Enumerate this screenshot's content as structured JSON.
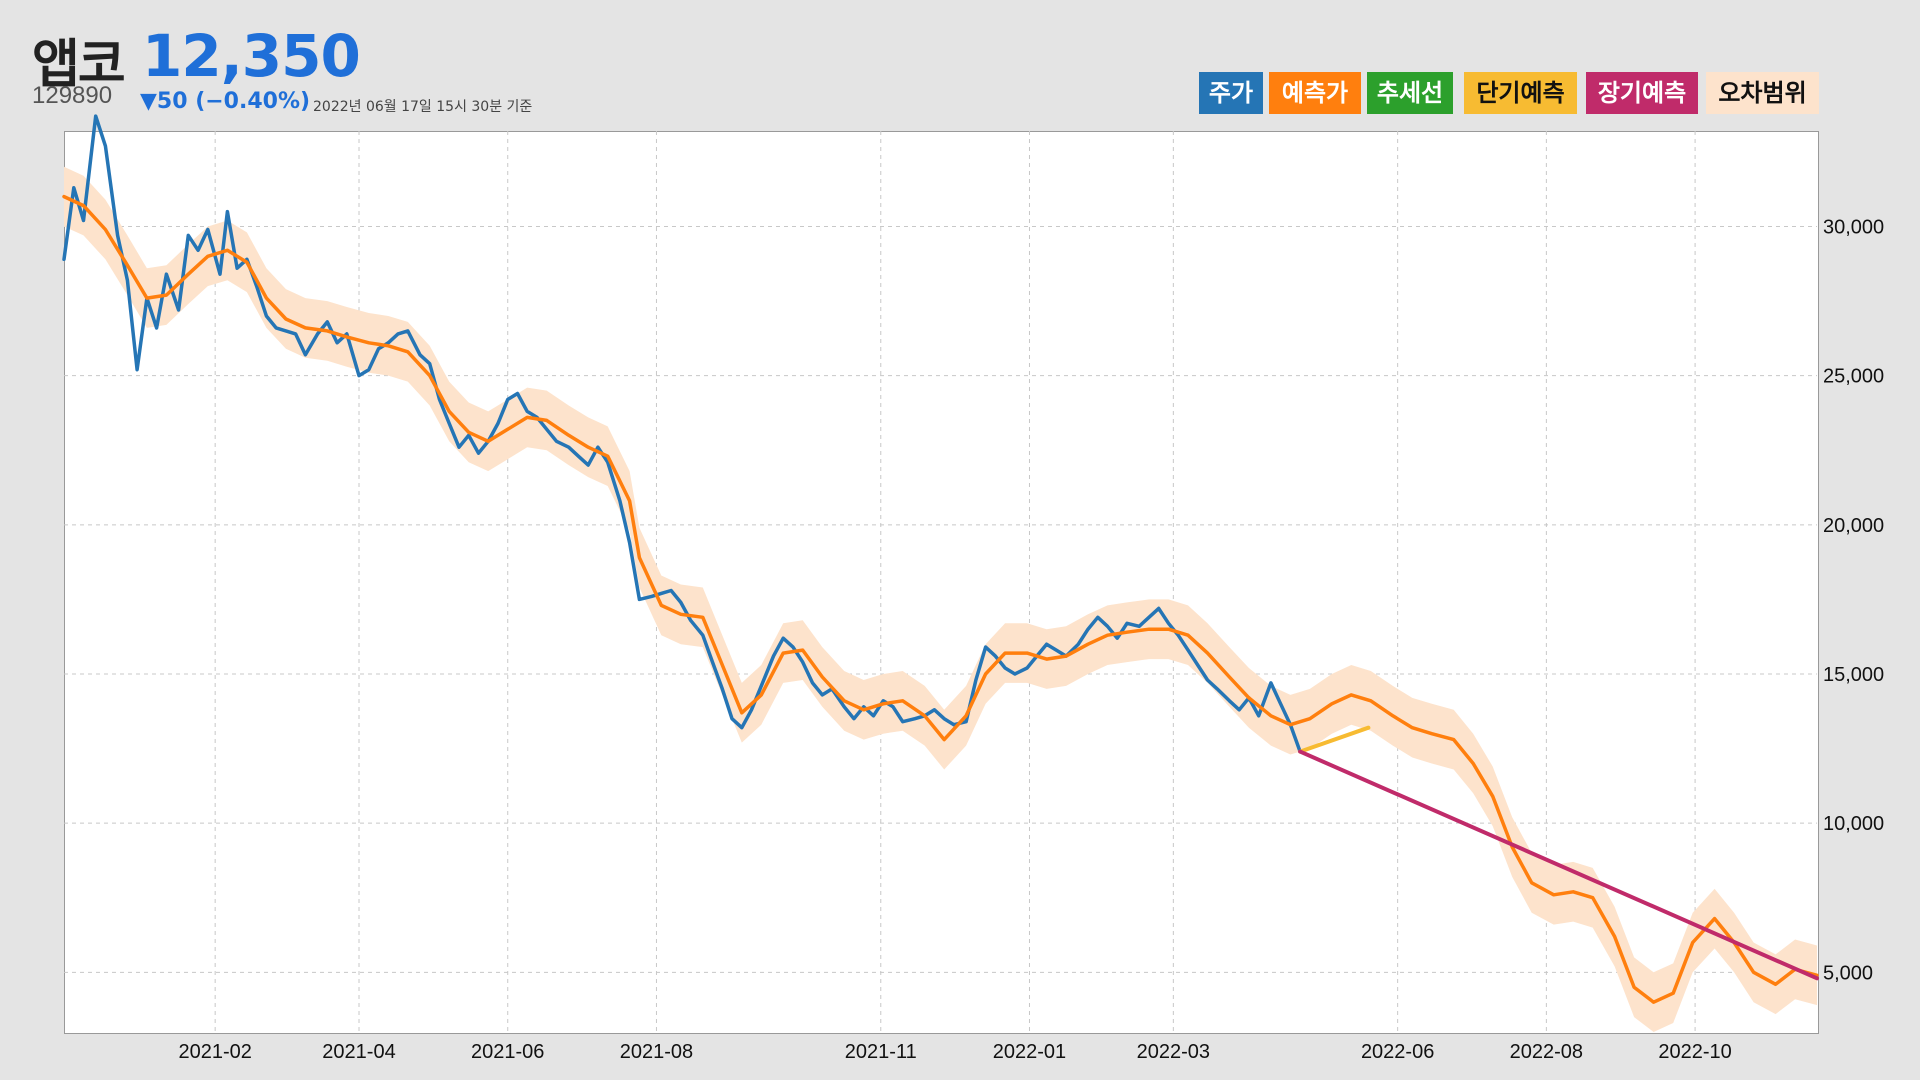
{
  "header": {
    "name": "앱코",
    "price": "12,350",
    "code": "129890",
    "change": "▼50 (−0.40%)",
    "as_of": "2022년 06월 17일 15시 30분 기준"
  },
  "legend": [
    {
      "label": "주가",
      "color": "#2575b5",
      "text_color": "#ffffff"
    },
    {
      "label": "예측가",
      "color": "#ff7f0e",
      "text_color": "#ffffff"
    },
    {
      "label": "추세선",
      "color": "#2ca02c",
      "text_color": "#ffffff"
    },
    {
      "label": "단기예측",
      "color": "#f7bb32",
      "text_color": "#111111"
    },
    {
      "label": "장기예측",
      "color": "#c02b6a",
      "text_color": "#ffffff"
    },
    {
      "label": "오차범위",
      "color": "#fde3cc",
      "text_color": "#111111"
    }
  ],
  "chart_data": {
    "type": "line",
    "title": "",
    "xlabel": "",
    "ylabel": "",
    "x_range": [
      "2020-12-01",
      "2022-11-20"
    ],
    "ylim": [
      3000,
      33200
    ],
    "y_axis_side": "right",
    "grid": true,
    "legend_position": "top-right",
    "x_ticks": [
      {
        "date": "2021-02-01",
        "label": "2021-02"
      },
      {
        "date": "2021-04-01",
        "label": "2021-04"
      },
      {
        "date": "2021-06-01",
        "label": "2021-06"
      },
      {
        "date": "2021-08-01",
        "label": "2021-08"
      },
      {
        "date": "2021-11-01",
        "label": "2021-11"
      },
      {
        "date": "2022-01-01",
        "label": "2022-01"
      },
      {
        "date": "2022-03-01",
        "label": "2022-03"
      },
      {
        "date": "2022-06-01",
        "label": "2022-06"
      },
      {
        "date": "2022-08-01",
        "label": "2022-08"
      },
      {
        "date": "2022-10-01",
        "label": "2022-10"
      }
    ],
    "y_ticks": [
      {
        "value": 5000,
        "label": "5,000"
      },
      {
        "value": 10000,
        "label": "10,000"
      },
      {
        "value": 15000,
        "label": "15,000"
      },
      {
        "value": 20000,
        "label": "20,000"
      },
      {
        "value": 25000,
        "label": "25,000"
      },
      {
        "value": 30000,
        "label": "30,000"
      }
    ],
    "series": [
      {
        "name": "주가",
        "color": "#2575b5",
        "points": [
          [
            "2020-12-01",
            28900
          ],
          [
            "2020-12-05",
            31300
          ],
          [
            "2020-12-09",
            30200
          ],
          [
            "2020-12-14",
            33700
          ],
          [
            "2020-12-18",
            32700
          ],
          [
            "2020-12-23",
            29700
          ],
          [
            "2020-12-27",
            28200
          ],
          [
            "2020-12-31",
            25200
          ],
          [
            "2021-01-04",
            27600
          ],
          [
            "2021-01-08",
            26600
          ],
          [
            "2021-01-12",
            28400
          ],
          [
            "2021-01-17",
            27200
          ],
          [
            "2021-01-21",
            29700
          ],
          [
            "2021-01-25",
            29200
          ],
          [
            "2021-01-29",
            29900
          ],
          [
            "2021-02-03",
            28400
          ],
          [
            "2021-02-06",
            30500
          ],
          [
            "2021-02-10",
            28600
          ],
          [
            "2021-02-14",
            28900
          ],
          [
            "2021-02-18",
            28000
          ],
          [
            "2021-02-22",
            27000
          ],
          [
            "2021-02-26",
            26600
          ],
          [
            "2021-03-02",
            26500
          ],
          [
            "2021-03-06",
            26400
          ],
          [
            "2021-03-10",
            25700
          ],
          [
            "2021-03-15",
            26400
          ],
          [
            "2021-03-19",
            26800
          ],
          [
            "2021-03-23",
            26100
          ],
          [
            "2021-03-27",
            26400
          ],
          [
            "2021-04-01",
            25000
          ],
          [
            "2021-04-05",
            25200
          ],
          [
            "2021-04-09",
            25900
          ],
          [
            "2021-04-13",
            26100
          ],
          [
            "2021-04-17",
            26400
          ],
          [
            "2021-04-21",
            26500
          ],
          [
            "2021-04-26",
            25700
          ],
          [
            "2021-04-30",
            25400
          ],
          [
            "2021-05-04",
            24200
          ],
          [
            "2021-05-08",
            23400
          ],
          [
            "2021-05-12",
            22600
          ],
          [
            "2021-05-16",
            23000
          ],
          [
            "2021-05-20",
            22400
          ],
          [
            "2021-05-24",
            22800
          ],
          [
            "2021-05-28",
            23400
          ],
          [
            "2021-06-01",
            24200
          ],
          [
            "2021-06-05",
            24400
          ],
          [
            "2021-06-09",
            23800
          ],
          [
            "2021-06-13",
            23600
          ],
          [
            "2021-06-17",
            23200
          ],
          [
            "2021-06-21",
            22800
          ],
          [
            "2021-06-26",
            22600
          ],
          [
            "2021-06-30",
            22300
          ],
          [
            "2021-07-04",
            22000
          ],
          [
            "2021-07-08",
            22600
          ],
          [
            "2021-07-12",
            22100
          ],
          [
            "2021-07-17",
            20800
          ],
          [
            "2021-07-21",
            19400
          ],
          [
            "2021-07-25",
            17500
          ],
          [
            "2021-07-30",
            17600
          ],
          [
            "2021-08-03",
            17700
          ],
          [
            "2021-08-07",
            17800
          ],
          [
            "2021-08-11",
            17400
          ],
          [
            "2021-08-15",
            16800
          ],
          [
            "2021-08-20",
            16300
          ],
          [
            "2021-08-24",
            15400
          ],
          [
            "2021-08-28",
            14500
          ],
          [
            "2021-09-01",
            13500
          ],
          [
            "2021-09-05",
            13200
          ],
          [
            "2021-09-09",
            13800
          ],
          [
            "2021-09-13",
            14600
          ],
          [
            "2021-09-18",
            15600
          ],
          [
            "2021-09-22",
            16200
          ],
          [
            "2021-09-26",
            15900
          ],
          [
            "2021-09-30",
            15400
          ],
          [
            "2021-10-04",
            14700
          ],
          [
            "2021-10-08",
            14300
          ],
          [
            "2021-10-12",
            14500
          ],
          [
            "2021-10-17",
            13900
          ],
          [
            "2021-10-21",
            13500
          ],
          [
            "2021-10-25",
            13900
          ],
          [
            "2021-10-29",
            13600
          ],
          [
            "2021-11-02",
            14100
          ],
          [
            "2021-11-06",
            13900
          ],
          [
            "2021-11-10",
            13400
          ],
          [
            "2021-11-15",
            13500
          ],
          [
            "2021-11-19",
            13600
          ],
          [
            "2021-11-23",
            13800
          ],
          [
            "2021-11-27",
            13500
          ],
          [
            "2021-12-01",
            13300
          ],
          [
            "2021-12-06",
            13400
          ],
          [
            "2021-12-10",
            14800
          ],
          [
            "2021-12-14",
            15900
          ],
          [
            "2021-12-18",
            15600
          ],
          [
            "2021-12-22",
            15200
          ],
          [
            "2021-12-26",
            15000
          ],
          [
            "2021-12-31",
            15200
          ],
          [
            "2022-01-04",
            15600
          ],
          [
            "2022-01-08",
            16000
          ],
          [
            "2022-01-12",
            15800
          ],
          [
            "2022-01-16",
            15600
          ],
          [
            "2022-01-21",
            16000
          ],
          [
            "2022-01-25",
            16500
          ],
          [
            "2022-01-29",
            16900
          ],
          [
            "2022-02-02",
            16600
          ],
          [
            "2022-02-06",
            16200
          ],
          [
            "2022-02-10",
            16700
          ],
          [
            "2022-02-15",
            16600
          ],
          [
            "2022-02-19",
            16900
          ],
          [
            "2022-02-23",
            17200
          ],
          [
            "2022-02-27",
            16700
          ],
          [
            "2022-03-03",
            16300
          ],
          [
            "2022-03-07",
            15800
          ],
          [
            "2022-03-11",
            15300
          ],
          [
            "2022-03-15",
            14800
          ],
          [
            "2022-03-19",
            14500
          ],
          [
            "2022-03-24",
            14100
          ],
          [
            "2022-03-28",
            13800
          ],
          [
            "2022-04-01",
            14200
          ],
          [
            "2022-04-05",
            13600
          ],
          [
            "2022-04-10",
            14700
          ],
          [
            "2022-04-14",
            14000
          ],
          [
            "2022-04-18",
            13300
          ],
          [
            "2022-04-22",
            12400
          ]
        ]
      },
      {
        "name": "예측가",
        "color": "#ff7f0e",
        "points": [
          [
            "2020-12-01",
            31000
          ],
          [
            "2020-12-09",
            30700
          ],
          [
            "2020-12-18",
            29900
          ],
          [
            "2020-12-27",
            28700
          ],
          [
            "2021-01-04",
            27600
          ],
          [
            "2021-01-12",
            27700
          ],
          [
            "2021-01-21",
            28400
          ],
          [
            "2021-01-29",
            29000
          ],
          [
            "2021-02-06",
            29200
          ],
          [
            "2021-02-14",
            28800
          ],
          [
            "2021-02-22",
            27600
          ],
          [
            "2021-03-02",
            26900
          ],
          [
            "2021-03-10",
            26600
          ],
          [
            "2021-03-19",
            26500
          ],
          [
            "2021-03-27",
            26300
          ],
          [
            "2021-04-05",
            26100
          ],
          [
            "2021-04-13",
            26000
          ],
          [
            "2021-04-21",
            25800
          ],
          [
            "2021-04-30",
            25000
          ],
          [
            "2021-05-08",
            23800
          ],
          [
            "2021-05-16",
            23100
          ],
          [
            "2021-05-24",
            22800
          ],
          [
            "2021-06-01",
            23200
          ],
          [
            "2021-06-09",
            23600
          ],
          [
            "2021-06-17",
            23500
          ],
          [
            "2021-06-26",
            23000
          ],
          [
            "2021-07-04",
            22600
          ],
          [
            "2021-07-12",
            22300
          ],
          [
            "2021-07-21",
            20800
          ],
          [
            "2021-07-25",
            18900
          ],
          [
            "2021-08-03",
            17300
          ],
          [
            "2021-08-11",
            17000
          ],
          [
            "2021-08-20",
            16900
          ],
          [
            "2021-08-28",
            15300
          ],
          [
            "2021-09-05",
            13700
          ],
          [
            "2021-09-13",
            14300
          ],
          [
            "2021-09-22",
            15700
          ],
          [
            "2021-09-30",
            15800
          ],
          [
            "2021-10-08",
            14900
          ],
          [
            "2021-10-17",
            14100
          ],
          [
            "2021-10-25",
            13800
          ],
          [
            "2021-11-02",
            14000
          ],
          [
            "2021-11-10",
            14100
          ],
          [
            "2021-11-19",
            13600
          ],
          [
            "2021-11-27",
            12800
          ],
          [
            "2021-12-06",
            13600
          ],
          [
            "2021-12-14",
            15000
          ],
          [
            "2021-12-22",
            15700
          ],
          [
            "2021-12-31",
            15700
          ],
          [
            "2022-01-08",
            15500
          ],
          [
            "2022-01-16",
            15600
          ],
          [
            "2022-01-25",
            16000
          ],
          [
            "2022-02-02",
            16300
          ],
          [
            "2022-02-10",
            16400
          ],
          [
            "2022-02-19",
            16500
          ],
          [
            "2022-02-27",
            16500
          ],
          [
            "2022-03-07",
            16300
          ],
          [
            "2022-03-15",
            15700
          ],
          [
            "2022-03-24",
            14900
          ],
          [
            "2022-04-01",
            14200
          ],
          [
            "2022-04-10",
            13600
          ],
          [
            "2022-04-18",
            13300
          ],
          [
            "2022-04-26",
            13500
          ],
          [
            "2022-05-05",
            14000
          ],
          [
            "2022-05-13",
            14300
          ],
          [
            "2022-05-21",
            14100
          ],
          [
            "2022-05-30",
            13600
          ],
          [
            "2022-06-07",
            13200
          ],
          [
            "2022-06-15",
            13000
          ],
          [
            "2022-06-24",
            12800
          ],
          [
            "2022-07-02",
            12000
          ],
          [
            "2022-07-10",
            10900
          ],
          [
            "2022-07-18",
            9200
          ],
          [
            "2022-07-26",
            8000
          ],
          [
            "2022-08-04",
            7600
          ],
          [
            "2022-08-12",
            7700
          ],
          [
            "2022-08-20",
            7500
          ],
          [
            "2022-08-29",
            6200
          ],
          [
            "2022-09-06",
            4500
          ],
          [
            "2022-09-14",
            4000
          ],
          [
            "2022-09-22",
            4300
          ],
          [
            "2022-09-30",
            6000
          ],
          [
            "2022-10-09",
            6800
          ],
          [
            "2022-10-17",
            6000
          ],
          [
            "2022-10-25",
            5000
          ],
          [
            "2022-11-03",
            4600
          ],
          [
            "2022-11-11",
            5100
          ],
          [
            "2022-11-20",
            4900
          ]
        ]
      },
      {
        "name": "단기예측",
        "color": "#f7bb32",
        "points": [
          [
            "2022-04-22",
            12400
          ],
          [
            "2022-05-20",
            13200
          ]
        ]
      },
      {
        "name": "장기예측",
        "color": "#c02b6a",
        "points": [
          [
            "2022-04-22",
            12400
          ],
          [
            "2022-11-20",
            4800
          ]
        ]
      }
    ],
    "band": {
      "name": "오차범위",
      "color": "#fde3cc",
      "width": 1000
    }
  }
}
